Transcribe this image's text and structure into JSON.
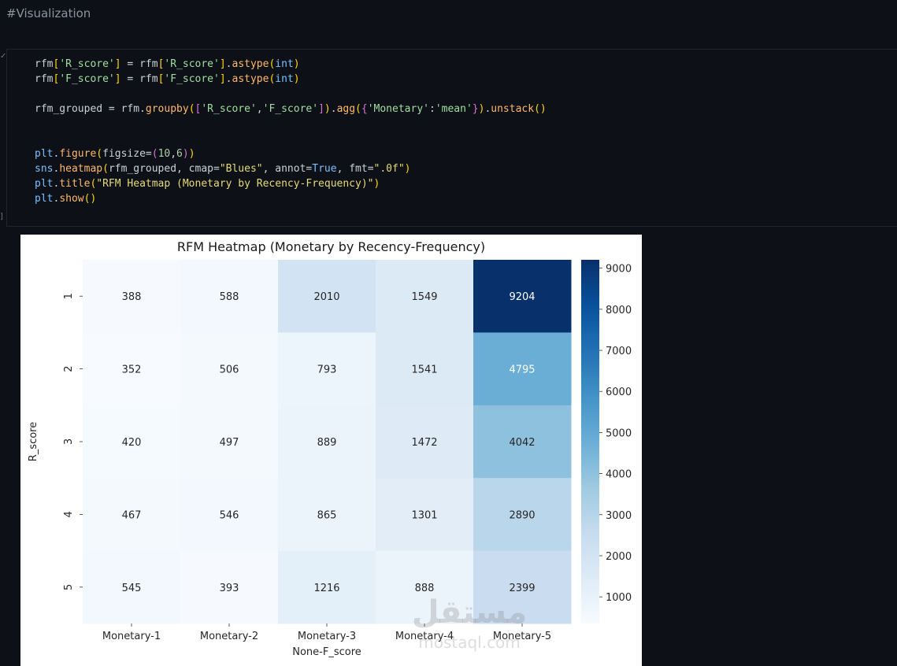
{
  "comment": "#Visualization",
  "code_lines": [
    [
      [
        "v",
        "rfm"
      ],
      [
        "p",
        "["
      ],
      [
        "s2",
        "'R_score'"
      ],
      [
        "p",
        "]"
      ],
      [
        "v",
        " = rfm"
      ],
      [
        "p",
        "["
      ],
      [
        "s2",
        "'R_score'"
      ],
      [
        "p",
        "]"
      ],
      [
        "v",
        "."
      ],
      [
        "fn",
        "astype"
      ],
      [
        "p",
        "("
      ],
      [
        "k",
        "int"
      ],
      [
        "p",
        ")"
      ]
    ],
    [
      [
        "v",
        "rfm"
      ],
      [
        "p",
        "["
      ],
      [
        "s2",
        "'F_score'"
      ],
      [
        "p",
        "]"
      ],
      [
        "v",
        " = rfm"
      ],
      [
        "p",
        "["
      ],
      [
        "s2",
        "'F_score'"
      ],
      [
        "p",
        "]"
      ],
      [
        "v",
        "."
      ],
      [
        "fn",
        "astype"
      ],
      [
        "p",
        "("
      ],
      [
        "k",
        "int"
      ],
      [
        "p",
        ")"
      ]
    ],
    [],
    [
      [
        "v",
        "rfm_grouped = rfm."
      ],
      [
        "fn",
        "groupby"
      ],
      [
        "p",
        "("
      ],
      [
        "p2",
        "["
      ],
      [
        "s2",
        "'R_score'"
      ],
      [
        "v",
        ","
      ],
      [
        "s2",
        "'F_score'"
      ],
      [
        "p2",
        "]"
      ],
      [
        "p",
        ")"
      ],
      [
        "v",
        "."
      ],
      [
        "fn",
        "agg"
      ],
      [
        "p",
        "("
      ],
      [
        "p2",
        "{"
      ],
      [
        "s2",
        "'Monetary'"
      ],
      [
        "v",
        ":"
      ],
      [
        "s2",
        "'mean'"
      ],
      [
        "p2",
        "}"
      ],
      [
        "p",
        ")"
      ],
      [
        "v",
        "."
      ],
      [
        "fn",
        "unstack"
      ],
      [
        "p",
        "()"
      ]
    ],
    [],
    [],
    [
      [
        "k",
        "plt"
      ],
      [
        "v",
        "."
      ],
      [
        "fn",
        "figure"
      ],
      [
        "p",
        "("
      ],
      [
        "v",
        "figsize="
      ],
      [
        "p2",
        "("
      ],
      [
        "n",
        "10"
      ],
      [
        "v",
        ","
      ],
      [
        "n",
        "6"
      ],
      [
        "p2",
        ")"
      ],
      [
        "p",
        ")"
      ]
    ],
    [
      [
        "k",
        "sns"
      ],
      [
        "v",
        "."
      ],
      [
        "fn",
        "heatmap"
      ],
      [
        "p",
        "("
      ],
      [
        "v",
        "rfm_grouped, cmap="
      ],
      [
        "s3",
        "\"Blues\""
      ],
      [
        "v",
        ", annot="
      ],
      [
        "cst",
        "True"
      ],
      [
        "v",
        ", fmt="
      ],
      [
        "s3",
        "\".0f\""
      ],
      [
        "p",
        ")"
      ]
    ],
    [
      [
        "k",
        "plt"
      ],
      [
        "v",
        "."
      ],
      [
        "fn",
        "title"
      ],
      [
        "p",
        "("
      ],
      [
        "s3",
        "\"RFM Heatmap (Monetary by Recency-Frequency)\""
      ],
      [
        "p",
        ")"
      ]
    ],
    [
      [
        "k",
        "plt"
      ],
      [
        "v",
        "."
      ],
      [
        "fn",
        "show"
      ],
      [
        "p",
        "()"
      ]
    ]
  ],
  "chart_data": {
    "type": "heatmap",
    "title": "RFM Heatmap (Monetary by Recency-Frequency)",
    "xlabel": "None-F_score",
    "ylabel": "R_score",
    "x_categories": [
      "Monetary-1",
      "Monetary-2",
      "Monetary-3",
      "Monetary-4",
      "Monetary-5"
    ],
    "y_categories": [
      "1",
      "2",
      "3",
      "4",
      "5"
    ],
    "values": [
      [
        388,
        588,
        2010,
        1549,
        9204
      ],
      [
        352,
        506,
        793,
        1541,
        4795
      ],
      [
        420,
        497,
        889,
        1472,
        4042
      ],
      [
        467,
        546,
        865,
        1301,
        2890
      ],
      [
        545,
        393,
        1216,
        888,
        2399
      ]
    ],
    "colormap": "Blues",
    "vmin": 352,
    "vmax": 9204,
    "colorbar_ticks": [
      1000,
      2000,
      3000,
      4000,
      5000,
      6000,
      7000,
      8000,
      9000
    ]
  },
  "watermark": {
    "text": "mostaql.com",
    "arabic": "مستقل"
  }
}
